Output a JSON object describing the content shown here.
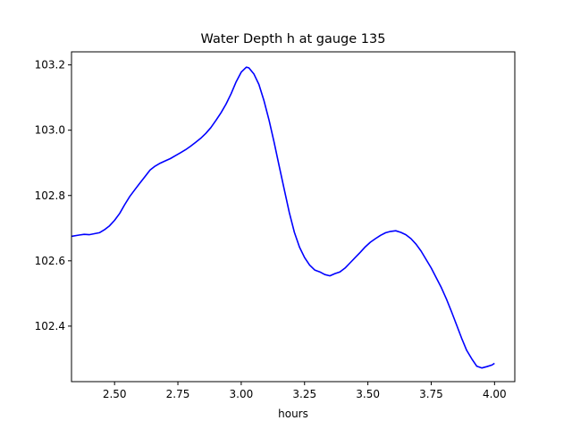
{
  "chart_data": {
    "type": "line",
    "title": "Water Depth h at gauge 135",
    "xlabel": "hours",
    "ylabel": "",
    "xlim": [
      2.33,
      4.08
    ],
    "ylim": [
      102.23,
      103.24
    ],
    "xticks": [
      2.5,
      2.75,
      3.0,
      3.25,
      3.5,
      3.75,
      4.0
    ],
    "xtick_labels": [
      "2.50",
      "2.75",
      "3.00",
      "3.25",
      "3.50",
      "3.75",
      "4.00"
    ],
    "yticks": [
      102.4,
      102.6,
      102.8,
      103.0,
      103.2
    ],
    "ytick_labels": [
      "102.4",
      "102.6",
      "102.8",
      "103.0",
      "103.2"
    ],
    "grid": false,
    "series": [
      {
        "color": "#0000ff",
        "x": [
          2.33,
          2.36,
          2.38,
          2.4,
          2.42,
          2.44,
          2.46,
          2.48,
          2.5,
          2.52,
          2.54,
          2.56,
          2.58,
          2.6,
          2.62,
          2.64,
          2.66,
          2.68,
          2.7,
          2.72,
          2.74,
          2.76,
          2.78,
          2.8,
          2.82,
          2.84,
          2.86,
          2.88,
          2.9,
          2.92,
          2.94,
          2.96,
          2.98,
          3.0,
          3.02,
          3.03,
          3.05,
          3.07,
          3.09,
          3.11,
          3.13,
          3.15,
          3.17,
          3.19,
          3.21,
          3.23,
          3.25,
          3.27,
          3.29,
          3.31,
          3.33,
          3.35,
          3.37,
          3.39,
          3.41,
          3.43,
          3.45,
          3.47,
          3.49,
          3.51,
          3.53,
          3.55,
          3.57,
          3.59,
          3.61,
          3.63,
          3.65,
          3.67,
          3.69,
          3.71,
          3.73,
          3.75,
          3.77,
          3.79,
          3.81,
          3.83,
          3.85,
          3.87,
          3.89,
          3.91,
          3.93,
          3.95,
          3.97,
          3.99,
          4.0
        ],
        "values": [
          102.675,
          102.679,
          102.681,
          102.68,
          102.683,
          102.686,
          102.695,
          102.707,
          102.724,
          102.745,
          102.772,
          102.797,
          102.818,
          102.838,
          102.858,
          102.878,
          102.89,
          102.899,
          102.906,
          102.913,
          102.922,
          102.931,
          102.94,
          102.951,
          102.963,
          102.975,
          102.99,
          103.008,
          103.03,
          103.053,
          103.08,
          103.112,
          103.148,
          103.178,
          103.193,
          103.191,
          103.172,
          103.14,
          103.09,
          103.03,
          102.963,
          102.89,
          102.818,
          102.748,
          102.687,
          102.642,
          102.61,
          102.587,
          102.572,
          102.566,
          102.558,
          102.554,
          102.561,
          102.566,
          102.578,
          102.594,
          102.61,
          102.626,
          102.643,
          102.657,
          102.668,
          102.678,
          102.686,
          102.69,
          102.692,
          102.687,
          102.68,
          102.668,
          102.651,
          102.63,
          102.604,
          102.578,
          102.548,
          102.518,
          102.483,
          102.445,
          102.404,
          102.363,
          102.326,
          102.3,
          102.277,
          102.272,
          102.276,
          102.281,
          102.286
        ]
      }
    ]
  }
}
